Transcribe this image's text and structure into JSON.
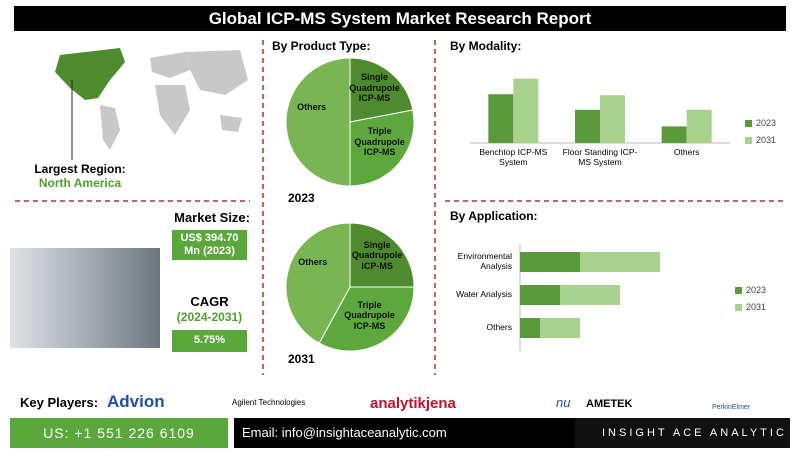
{
  "header": {
    "title": "Global ICP-MS System Market Research Report"
  },
  "region": {
    "label": "Largest Region:",
    "value": "North America"
  },
  "market_size": {
    "label": "Market Size:",
    "value": "US$ 394.70 Mn (2023)"
  },
  "cagr": {
    "label": "CAGR",
    "period": "(2024-2031)",
    "value": "5.75%"
  },
  "chart_data": [
    {
      "type": "pie",
      "title": "By Product Type:",
      "subtitle": "2023",
      "categories": [
        "Single Quadrupole ICP-MS",
        "Triple Quadrupole ICP-MS",
        "Others"
      ],
      "values": [
        22,
        28,
        50
      ],
      "colors": [
        "#4e8a2e",
        "#5da83c",
        "#79b552"
      ]
    },
    {
      "type": "pie",
      "subtitle": "2031",
      "categories": [
        "Single Quadrupole ICP-MS",
        "Triple Quadrupole ICP-MS",
        "Others"
      ],
      "values": [
        25,
        33,
        42
      ],
      "colors": [
        "#4e8a2e",
        "#5da83c",
        "#79b552"
      ]
    },
    {
      "type": "bar",
      "title": "By Modality:",
      "categories": [
        "Benchtop ICP-MS System",
        "Floor Standing ICP-MS System",
        "Others"
      ],
      "series": [
        {
          "name": "2023",
          "color": "#5a9a3a",
          "values": [
            47,
            32,
            16
          ]
        },
        {
          "name": "2031",
          "color": "#a9d18e",
          "values": [
            62,
            46,
            32
          ]
        }
      ],
      "ylim": [
        0,
        80
      ]
    },
    {
      "type": "hbar-stacked",
      "title": "By Application:",
      "categories": [
        "Environmental Analysis",
        "Water Analysis",
        "Others"
      ],
      "series": [
        {
          "name": "2023",
          "color": "#5a9a3a",
          "values": [
            60,
            40,
            20
          ]
        },
        {
          "name": "2031",
          "color": "#a9d18e",
          "values": [
            80,
            60,
            40
          ]
        }
      ],
      "xlim": [
        0,
        160
      ]
    }
  ],
  "key_players": {
    "label": "Key Players:",
    "names": [
      "Advion",
      "Agilent Technologies",
      "analytikjena",
      "nu",
      "AMETEK",
      "PerkinElmer"
    ]
  },
  "footer": {
    "phone": "US: +1 551 226 6109",
    "email": "Email: info@insightaceanalytic.com",
    "brand": "INSIGHT ACE ANALYTIC"
  }
}
